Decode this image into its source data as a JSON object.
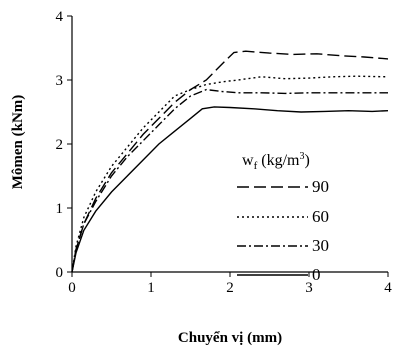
{
  "chart_data": {
    "type": "line",
    "xlabel": "Chuyển vị (mm)",
    "ylabel": "Mômen (kNm)",
    "xlim": [
      0,
      4
    ],
    "ylim": [
      0,
      4
    ],
    "xticks": [
      "0",
      "1",
      "2",
      "3",
      "4"
    ],
    "yticks": [
      "0",
      "1",
      "2",
      "3",
      "4"
    ],
    "grid": false,
    "legend_title": "wf (kg/m³)",
    "legend_title_main": "w",
    "legend_title_sub": "f",
    "legend_title_rest": " (kg/m",
    "legend_title_sup": "3",
    "legend_title_end": ")",
    "legend_position": "right",
    "series": [
      {
        "name": "90",
        "dash": "long-dash",
        "x": [
          0,
          0.05,
          0.15,
          0.3,
          0.5,
          0.7,
          0.9,
          1.1,
          1.3,
          1.5,
          1.7,
          1.9,
          2.05,
          2.2,
          2.5,
          2.8,
          3.1,
          3.4,
          3.7,
          4.0
        ],
        "y": [
          0,
          0.35,
          0.75,
          1.15,
          1.55,
          1.85,
          2.15,
          2.4,
          2.65,
          2.85,
          3.0,
          3.25,
          3.43,
          3.45,
          3.42,
          3.4,
          3.41,
          3.38,
          3.36,
          3.33
        ]
      },
      {
        "name": "60",
        "dash": "dotted",
        "x": [
          0,
          0.05,
          0.15,
          0.3,
          0.5,
          0.7,
          0.9,
          1.1,
          1.3,
          1.5,
          1.7,
          1.9,
          2.1,
          2.4,
          2.7,
          3.0,
          3.3,
          3.6,
          4.0
        ],
        "y": [
          0,
          0.4,
          0.85,
          1.25,
          1.65,
          1.95,
          2.25,
          2.5,
          2.75,
          2.85,
          2.93,
          2.97,
          3.0,
          3.05,
          3.02,
          3.03,
          3.05,
          3.06,
          3.05
        ]
      },
      {
        "name": "30",
        "dash": "dash-dot",
        "x": [
          0,
          0.05,
          0.15,
          0.3,
          0.5,
          0.7,
          0.9,
          1.1,
          1.3,
          1.5,
          1.7,
          1.9,
          2.1,
          2.4,
          2.7,
          3.0,
          3.3,
          3.6,
          4.0
        ],
        "y": [
          0,
          0.35,
          0.75,
          1.1,
          1.5,
          1.8,
          2.05,
          2.3,
          2.55,
          2.75,
          2.85,
          2.82,
          2.8,
          2.8,
          2.79,
          2.8,
          2.8,
          2.8,
          2.8
        ]
      },
      {
        "name": "0",
        "dash": "solid",
        "x": [
          0,
          0.05,
          0.15,
          0.3,
          0.5,
          0.7,
          0.9,
          1.1,
          1.3,
          1.5,
          1.65,
          1.8,
          2.0,
          2.3,
          2.6,
          2.9,
          3.2,
          3.5,
          3.8,
          4.0
        ],
        "y": [
          0,
          0.3,
          0.65,
          0.95,
          1.25,
          1.5,
          1.75,
          2.0,
          2.2,
          2.4,
          2.55,
          2.58,
          2.57,
          2.55,
          2.52,
          2.5,
          2.51,
          2.52,
          2.51,
          2.52
        ]
      }
    ]
  }
}
